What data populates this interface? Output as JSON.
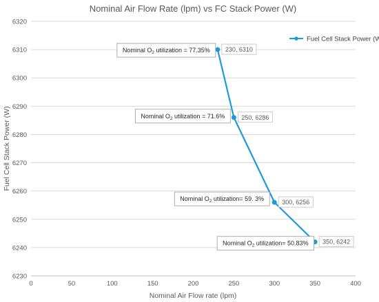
{
  "chart_data": {
    "type": "line",
    "title": "Nominal Air Flow Rate (lpm) vs FC Stack Power (W)",
    "xlabel": "Nominal Air Flow rate (lpm)",
    "ylabel": "Fuel Cell Stack Power (W)",
    "xlim": [
      0,
      400
    ],
    "ylim": [
      6230,
      6320
    ],
    "x_ticks": [
      0,
      50,
      100,
      150,
      200,
      250,
      300,
      350,
      400
    ],
    "y_ticks": [
      6230,
      6240,
      6250,
      6260,
      6270,
      6280,
      6290,
      6300,
      6310,
      6320
    ],
    "grid": "horizontal",
    "legend_position": "top-right",
    "series": [
      {
        "name": "Fuel Cell Stack Power (W)",
        "color": "#1a9bd7",
        "points": [
          {
            "x": 230,
            "y": 6310,
            "label": "230, 6310"
          },
          {
            "x": 250,
            "y": 6286,
            "label": "250, 6286"
          },
          {
            "x": 300,
            "y": 6256,
            "label": "300, 6256"
          },
          {
            "x": 350,
            "y": 6242,
            "label": "350, 6242"
          }
        ]
      }
    ],
    "annotations": [
      {
        "prefix": "Nominal O",
        "subscript": "2",
        "suffix": " utilization = 77.35%"
      },
      {
        "prefix": "Nominal O",
        "subscript": "2",
        "suffix": " utilization = 71.6%"
      },
      {
        "prefix": "Nominal O",
        "subscript": "2",
        "suffix": " utilization= 59. 3%"
      },
      {
        "prefix": "Nominal O",
        "subscript": "2",
        "suffix": " utilization= 50.83%"
      }
    ]
  }
}
